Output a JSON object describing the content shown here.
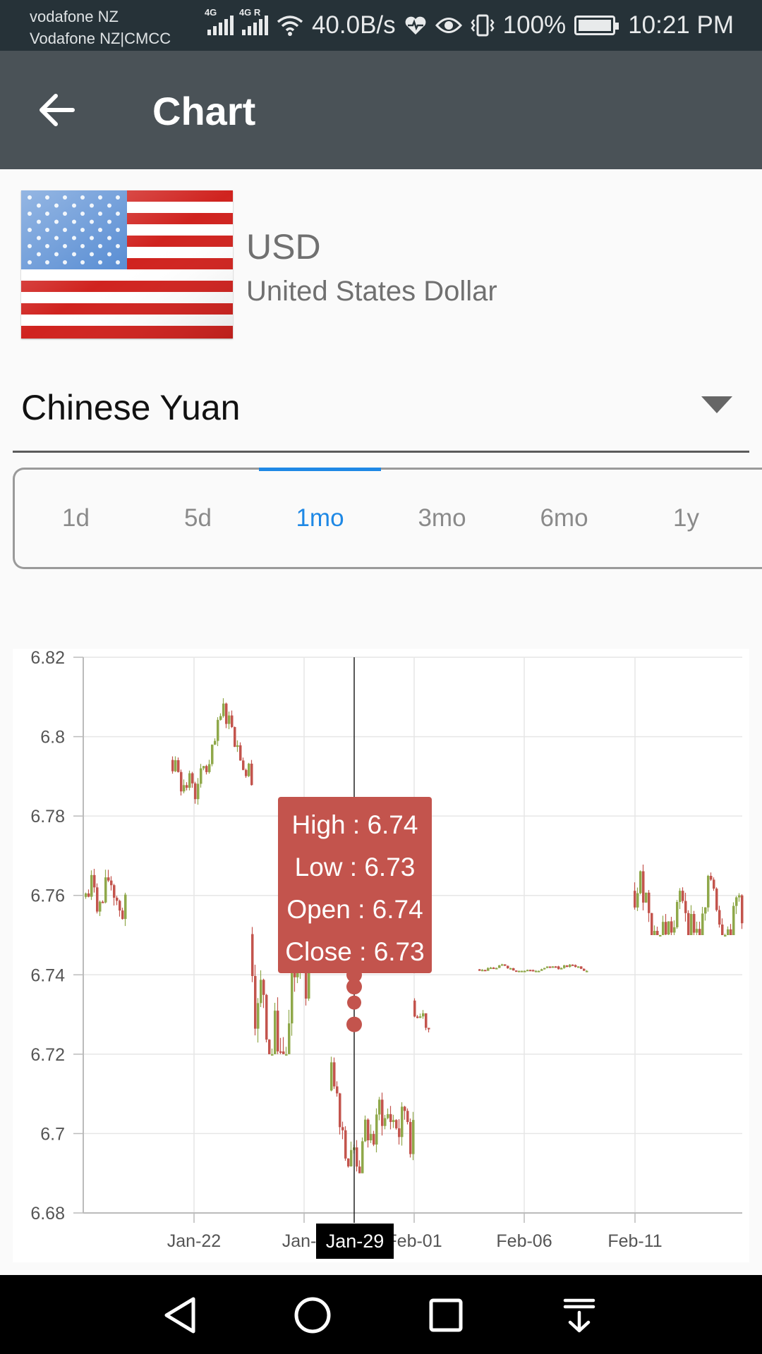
{
  "status_bar": {
    "carrier_line1": "vodafone NZ",
    "carrier_line2": "Vodafone NZ|CMCC",
    "net_type_1": "4G",
    "net_type_2": "4G R",
    "net_speed": "40.0B/s",
    "battery": "100%",
    "time": "10:21 PM"
  },
  "toolbar": {
    "title": "Chart",
    "back_icon": "arrow-left-icon"
  },
  "currency": {
    "code": "USD",
    "name": "United States Dollar",
    "flag": "us-flag"
  },
  "target_currency": {
    "selected": "Chinese Yuan"
  },
  "period_tabs": {
    "items": [
      "1d",
      "5d",
      "1mo",
      "3mo",
      "6mo",
      "1y"
    ],
    "active": "1mo"
  },
  "chart_data": {
    "type": "candlestick",
    "y_ticks": [
      "6.82",
      "6.8",
      "6.78",
      "6.76",
      "6.74",
      "6.72",
      "6.7",
      "6.68"
    ],
    "ylim": [
      6.68,
      6.82
    ],
    "x_ticks": [
      "Jan-22",
      "Jan-2",
      "Feb-01",
      "Feb-06",
      "Feb-11"
    ],
    "grid": true,
    "highlight_x": "Jan-29",
    "colors": {
      "up": "#8fa84a",
      "down": "#c3544d"
    },
    "tooltip": {
      "high": "High : 6.74",
      "low": "Low : 6.73",
      "open": "Open : 6.74",
      "close": "Close : 6.73"
    },
    "segments": [
      {
        "label": "Jan-17 to Jan-19",
        "range": [
          6.74,
          6.78
        ]
      },
      {
        "label": "Jan-21 to Jan-25",
        "range": [
          6.78,
          6.81
        ]
      },
      {
        "label": "Jan-25 to Jan-29",
        "range": [
          6.72,
          6.795
        ]
      },
      {
        "label": "Jan-29 to Feb-01",
        "range": [
          6.69,
          6.74
        ]
      },
      {
        "label": "Feb-01",
        "range": [
          6.72,
          6.745
        ]
      },
      {
        "label": "Feb-04 to Feb-08",
        "range": [
          6.741,
          6.745
        ]
      },
      {
        "label": "Feb-11 to Feb-15",
        "range": [
          6.75,
          6.795
        ]
      }
    ]
  },
  "nav_bar": {
    "icons": [
      "back-triangle-icon",
      "home-circle-icon",
      "recents-square-icon",
      "notification-pull-icon"
    ]
  }
}
